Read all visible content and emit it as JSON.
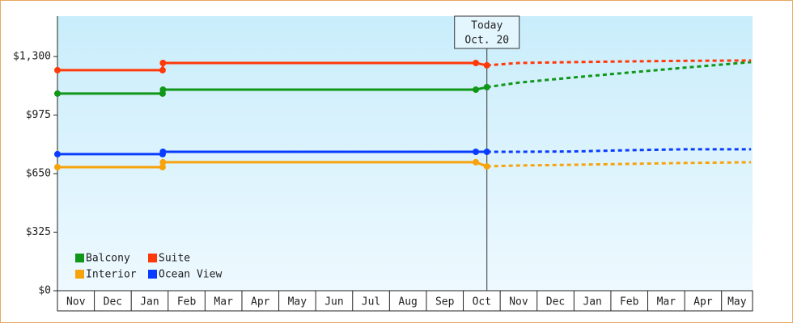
{
  "chart_data": {
    "type": "line",
    "categories": [
      "Nov",
      "Dec",
      "Jan",
      "Feb",
      "Mar",
      "Apr",
      "May",
      "Jun",
      "Jul",
      "Aug",
      "Sep",
      "Oct",
      "Nov",
      "Dec",
      "Jan",
      "Feb",
      "Mar",
      "Apr",
      "May"
    ],
    "x": [
      0,
      2.85,
      2.86,
      11.34,
      11.64,
      12.5,
      14,
      15.5,
      17,
      18.8
    ],
    "xlim": [
      0,
      18.84
    ],
    "ylim": [
      0,
      1524
    ],
    "yticks": [
      {
        "value": 0,
        "label": "$0"
      },
      {
        "value": 325,
        "label": "$325"
      },
      {
        "value": 650,
        "label": "$650"
      },
      {
        "value": 975,
        "label": "$975"
      },
      {
        "value": 1300,
        "label": "$1,300"
      }
    ],
    "series": [
      {
        "name": "Balcony",
        "color": "#109618",
        "values": [
          1094,
          1094,
          1116,
          1116,
          1130,
          null,
          null,
          null,
          null,
          null
        ],
        "forecast": [
          null,
          null,
          null,
          null,
          1130,
          1155,
          1184,
          1211,
          1238,
          1269
        ]
      },
      {
        "name": "Suite",
        "color": "#ff3a0a",
        "values": [
          1224,
          1224,
          1264,
          1264,
          1251,
          null,
          null,
          null,
          null,
          null
        ],
        "forecast": [
          null,
          null,
          null,
          null,
          1251,
          1264,
          1269,
          1273,
          1276,
          1278
        ]
      },
      {
        "name": "Interior",
        "color": "#f7a30c",
        "values": [
          686,
          686,
          713,
          713,
          690,
          null,
          null,
          null,
          null,
          null
        ],
        "forecast": [
          null,
          null,
          null,
          null,
          690,
          695,
          699,
          704,
          709,
          713
        ]
      },
      {
        "name": "Ocean View",
        "color": "#0a3cff",
        "values": [
          758,
          758,
          771,
          771,
          771,
          null,
          null,
          null,
          null,
          null
        ],
        "forecast": [
          null,
          null,
          null,
          null,
          771,
          771,
          773,
          780,
          785,
          785
        ]
      }
    ],
    "today": {
      "x": 11.64,
      "text": [
        "Today",
        "Oct. 20"
      ]
    }
  }
}
